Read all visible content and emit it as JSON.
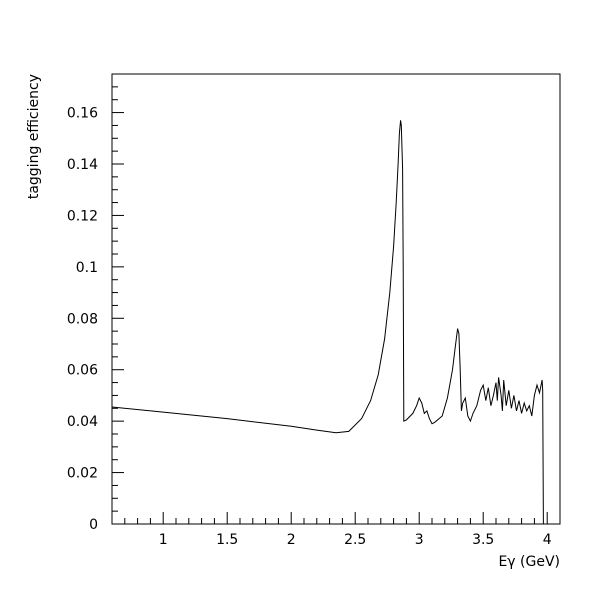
{
  "chart_data": {
    "type": "line",
    "title": "",
    "xlabel": "Eγ (GeV)",
    "ylabel": "tagging efficiency",
    "xlim": [
      0.6,
      4.1
    ],
    "ylim": [
      0,
      0.175
    ],
    "grid": false,
    "legend": "none",
    "x_tick_labels": [
      "1",
      "1.5",
      "2",
      "2.5",
      "3",
      "3.5",
      "4"
    ],
    "y_tick_labels": [
      "0",
      "0.02",
      "0.04",
      "0.06",
      "0.08",
      "0.1",
      "0.12",
      "0.14",
      "0.16"
    ],
    "line_color": "#000000",
    "series": [
      {
        "x": [
          0.6,
          1.0,
          1.5,
          2.0,
          2.2,
          2.35,
          2.45,
          2.55,
          2.62,
          2.68,
          2.73,
          2.77,
          2.8,
          2.82,
          2.835,
          2.845,
          2.855,
          2.86,
          2.87,
          2.875,
          2.88,
          2.9,
          2.95,
          2.98,
          3.0,
          3.02,
          3.04,
          3.06,
          3.08,
          3.1,
          3.12,
          3.18,
          3.22,
          3.26,
          3.28,
          3.3,
          3.31,
          3.32,
          3.33,
          3.34,
          3.36,
          3.38,
          3.4,
          3.42,
          3.45,
          3.48,
          3.5,
          3.52,
          3.54,
          3.56,
          3.58,
          3.6,
          3.61,
          3.62,
          3.64,
          3.65,
          3.66,
          3.68,
          3.7,
          3.72,
          3.74,
          3.76,
          3.78,
          3.8,
          3.82,
          3.84,
          3.86,
          3.88,
          3.9,
          3.92,
          3.94,
          3.96,
          3.965,
          3.97
        ],
        "y": [
          0.0455,
          0.0435,
          0.041,
          0.038,
          0.0365,
          0.0355,
          0.036,
          0.041,
          0.048,
          0.058,
          0.072,
          0.09,
          0.108,
          0.125,
          0.14,
          0.152,
          0.157,
          0.155,
          0.138,
          0.1,
          0.04,
          0.0405,
          0.043,
          0.046,
          0.049,
          0.047,
          0.043,
          0.044,
          0.041,
          0.039,
          0.0395,
          0.042,
          0.049,
          0.06,
          0.068,
          0.076,
          0.074,
          0.06,
          0.044,
          0.047,
          0.049,
          0.042,
          0.04,
          0.043,
          0.046,
          0.052,
          0.054,
          0.048,
          0.053,
          0.046,
          0.05,
          0.055,
          0.048,
          0.057,
          0.05,
          0.044,
          0.056,
          0.046,
          0.052,
          0.045,
          0.05,
          0.044,
          0.048,
          0.043,
          0.047,
          0.044,
          0.046,
          0.042,
          0.05,
          0.054,
          0.051,
          0.056,
          0.052,
          0.0
        ]
      }
    ]
  }
}
